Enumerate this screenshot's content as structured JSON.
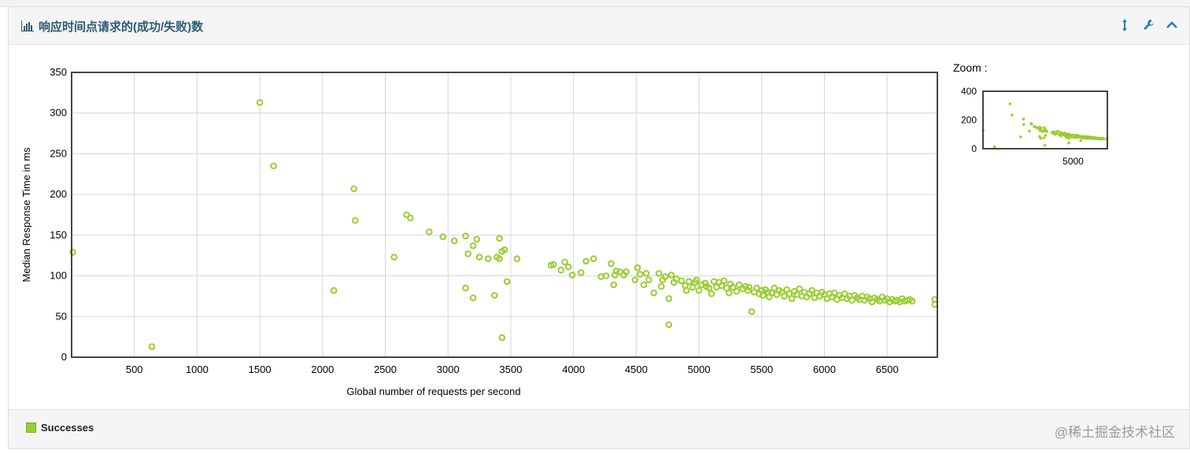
{
  "panel": {
    "title": "响应时间点请求的(成功/失败)数",
    "icons": [
      "sort-vertical-icon",
      "wrench-icon",
      "chevron-up-icon"
    ]
  },
  "legend": {
    "label": "Successes",
    "color": "#9acd32"
  },
  "zoom": {
    "label": "Zoom :",
    "yticks": [
      0,
      200,
      400
    ],
    "xticks": [
      5000
    ]
  },
  "watermark": "@稀土掘金技术社区",
  "chart_data": {
    "type": "scatter",
    "title": "",
    "xlabel": "Global number of requests per second",
    "ylabel": "Median Response Time in ms",
    "xlim": [
      0,
      6900
    ],
    "ylim": [
      0,
      350
    ],
    "xticks": [
      500,
      1000,
      1500,
      2000,
      2500,
      3000,
      3500,
      4000,
      4500,
      5000,
      5500,
      6000,
      6500
    ],
    "yticks": [
      0,
      50,
      100,
      150,
      200,
      250,
      300,
      350
    ],
    "grid": true,
    "series": [
      {
        "name": "Successes",
        "color": "#9acd32",
        "points": [
          [
            10,
            129
          ],
          [
            640,
            13
          ],
          [
            1500,
            313
          ],
          [
            1610,
            235
          ],
          [
            2090,
            82
          ],
          [
            2250,
            207
          ],
          [
            2260,
            168
          ],
          [
            2570,
            123
          ],
          [
            2670,
            175
          ],
          [
            2700,
            171
          ],
          [
            2850,
            154
          ],
          [
            2960,
            148
          ],
          [
            3050,
            143
          ],
          [
            3140,
            149
          ],
          [
            3140,
            85
          ],
          [
            3160,
            127
          ],
          [
            3200,
            137
          ],
          [
            3200,
            73
          ],
          [
            3230,
            145
          ],
          [
            3250,
            123
          ],
          [
            3320,
            121
          ],
          [
            3370,
            76
          ],
          [
            3390,
            123
          ],
          [
            3410,
            146
          ],
          [
            3410,
            121
          ],
          [
            3430,
            130
          ],
          [
            3450,
            132
          ],
          [
            3430,
            24
          ],
          [
            3470,
            93
          ],
          [
            3550,
            121
          ],
          [
            3820,
            113
          ],
          [
            3840,
            114
          ],
          [
            3900,
            107
          ],
          [
            3930,
            117
          ],
          [
            3960,
            111
          ],
          [
            3990,
            101
          ],
          [
            4060,
            104
          ],
          [
            4100,
            118
          ],
          [
            4160,
            121
          ],
          [
            4220,
            99
          ],
          [
            4260,
            100
          ],
          [
            4300,
            115
          ],
          [
            4320,
            89
          ],
          [
            4330,
            101
          ],
          [
            4340,
            106
          ],
          [
            4370,
            105
          ],
          [
            4400,
            101
          ],
          [
            4420,
            105
          ],
          [
            4490,
            95
          ],
          [
            4510,
            110
          ],
          [
            4530,
            102
          ],
          [
            4560,
            89
          ],
          [
            4580,
            103
          ],
          [
            4600,
            95
          ],
          [
            4640,
            79
          ],
          [
            4680,
            103
          ],
          [
            4700,
            87
          ],
          [
            4710,
            95
          ],
          [
            4730,
            99
          ],
          [
            4760,
            72
          ],
          [
            4760,
            40
          ],
          [
            4780,
            101
          ],
          [
            4800,
            92
          ],
          [
            4820,
            96
          ],
          [
            4860,
            94
          ],
          [
            4890,
            88
          ],
          [
            4900,
            82
          ],
          [
            4920,
            93
          ],
          [
            4950,
            86
          ],
          [
            4970,
            92
          ],
          [
            4980,
            95
          ],
          [
            5000,
            82
          ],
          [
            5020,
            89
          ],
          [
            5050,
            91
          ],
          [
            5060,
            87
          ],
          [
            5080,
            85
          ],
          [
            5100,
            78
          ],
          [
            5120,
            93
          ],
          [
            5140,
            86
          ],
          [
            5160,
            92
          ],
          [
            5180,
            88
          ],
          [
            5200,
            94
          ],
          [
            5220,
            85
          ],
          [
            5240,
            79
          ],
          [
            5250,
            90
          ],
          [
            5270,
            86
          ],
          [
            5300,
            81
          ],
          [
            5320,
            89
          ],
          [
            5350,
            84
          ],
          [
            5370,
            87
          ],
          [
            5390,
            82
          ],
          [
            5400,
            86
          ],
          [
            5420,
            56
          ],
          [
            5440,
            80
          ],
          [
            5460,
            85
          ],
          [
            5480,
            78
          ],
          [
            5500,
            82
          ],
          [
            5510,
            76
          ],
          [
            5530,
            83
          ],
          [
            5550,
            80
          ],
          [
            5560,
            74
          ],
          [
            5580,
            79
          ],
          [
            5600,
            85
          ],
          [
            5620,
            77
          ],
          [
            5640,
            82
          ],
          [
            5660,
            80
          ],
          [
            5680,
            75
          ],
          [
            5700,
            83
          ],
          [
            5720,
            78
          ],
          [
            5740,
            72
          ],
          [
            5760,
            81
          ],
          [
            5780,
            77
          ],
          [
            5800,
            84
          ],
          [
            5820,
            75
          ],
          [
            5840,
            80
          ],
          [
            5860,
            74
          ],
          [
            5880,
            78
          ],
          [
            5900,
            82
          ],
          [
            5920,
            73
          ],
          [
            5940,
            79
          ],
          [
            5960,
            75
          ],
          [
            5980,
            80
          ],
          [
            6000,
            77
          ],
          [
            6020,
            72
          ],
          [
            6040,
            78
          ],
          [
            6060,
            74
          ],
          [
            6080,
            79
          ],
          [
            6100,
            71
          ],
          [
            6120,
            76
          ],
          [
            6140,
            73
          ],
          [
            6160,
            78
          ],
          [
            6180,
            72
          ],
          [
            6200,
            75
          ],
          [
            6220,
            70
          ],
          [
            6240,
            76
          ],
          [
            6260,
            73
          ],
          [
            6280,
            71
          ],
          [
            6300,
            75
          ],
          [
            6320,
            70
          ],
          [
            6340,
            74
          ],
          [
            6360,
            72
          ],
          [
            6380,
            68
          ],
          [
            6400,
            73
          ],
          [
            6420,
            71
          ],
          [
            6440,
            69
          ],
          [
            6460,
            74
          ],
          [
            6480,
            70
          ],
          [
            6500,
            72
          ],
          [
            6520,
            68
          ],
          [
            6540,
            71
          ],
          [
            6560,
            69
          ],
          [
            6580,
            70
          ],
          [
            6600,
            68
          ],
          [
            6620,
            72
          ],
          [
            6640,
            69
          ],
          [
            6660,
            70
          ],
          [
            6680,
            71
          ],
          [
            6700,
            69
          ],
          [
            6880,
            71
          ],
          [
            6880,
            65
          ]
        ]
      }
    ]
  }
}
